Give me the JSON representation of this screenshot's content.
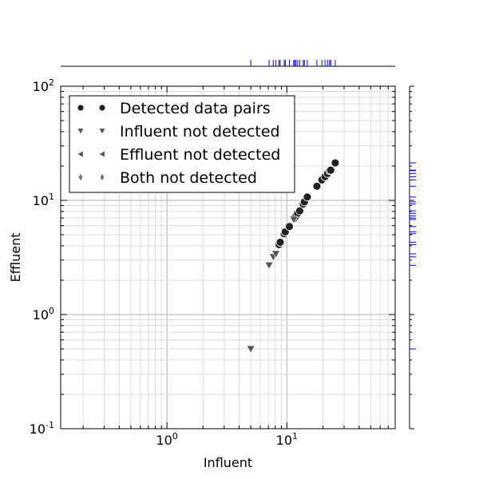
{
  "chart_data": {
    "type": "scatter",
    "title": "",
    "xlabel": "Influent",
    "ylabel": "Effluent",
    "xscale": "log",
    "yscale": "log",
    "xlim": [
      0.13,
      80
    ],
    "ylim": [
      0.1,
      100
    ],
    "grid": true,
    "legend_position": "top-left",
    "x_ticks": [
      {
        "value": 1,
        "base": "10",
        "exp": "0"
      },
      {
        "value": 10,
        "base": "10",
        "exp": "1"
      }
    ],
    "y_ticks": [
      {
        "value": 0.1,
        "base": "10",
        "exp": "-1"
      },
      {
        "value": 1,
        "base": "10",
        "exp": "0"
      },
      {
        "value": 10,
        "base": "10",
        "exp": "1"
      },
      {
        "value": 100,
        "base": "10",
        "exp": "2"
      }
    ],
    "series": [
      {
        "name": "Detected data pairs",
        "marker": "circle",
        "color": "#222222",
        "points": [
          [
            8.6,
            4.1
          ],
          [
            8.8,
            4.3
          ],
          [
            9.5,
            5.1
          ],
          [
            9.7,
            5.3
          ],
          [
            10.5,
            5.9
          ],
          [
            11.6,
            7.0
          ],
          [
            11.9,
            7.3
          ],
          [
            12.3,
            7.7
          ],
          [
            12.8,
            8.1
          ],
          [
            13.7,
            9.3
          ],
          [
            14.0,
            9.7
          ],
          [
            14.8,
            10.7
          ],
          [
            17.8,
            13.3
          ],
          [
            19.6,
            15.1
          ],
          [
            20.8,
            16.1
          ],
          [
            21.8,
            17.2
          ],
          [
            22.7,
            18.2
          ],
          [
            23.2,
            18.4
          ],
          [
            25.3,
            21.3
          ]
        ]
      },
      {
        "name": "Influent not detected",
        "marker": "triangle-down",
        "color": "#555555",
        "points": [
          [
            5.0,
            0.5
          ],
          [
            7.1,
            2.7
          ],
          [
            7.7,
            3.2
          ],
          [
            8.1,
            3.4
          ],
          [
            11.4,
            6.8
          ]
        ]
      },
      {
        "name": "Effluent not detected",
        "marker": "triangle-left",
        "color": "#555555",
        "points": []
      },
      {
        "name": "Both not detected",
        "marker": "diamond",
        "color": "#777777",
        "points": []
      }
    ],
    "x_rug": [
      5.0,
      7.1,
      7.7,
      8.1,
      8.6,
      8.8,
      9.5,
      9.7,
      10.5,
      11.4,
      11.6,
      11.9,
      12.3,
      12.8,
      13.7,
      14.0,
      14.8,
      17.8,
      19.6,
      20.8,
      21.8,
      22.7,
      23.2,
      25.3
    ],
    "y_rug": [
      0.5,
      2.7,
      3.2,
      3.4,
      4.1,
      4.3,
      5.1,
      5.3,
      5.9,
      6.8,
      7.0,
      7.3,
      7.7,
      8.1,
      9.3,
      9.7,
      10.7,
      13.3,
      15.1,
      16.1,
      17.2,
      18.2,
      18.4,
      21.3
    ],
    "rug_color": "#0000ff"
  }
}
